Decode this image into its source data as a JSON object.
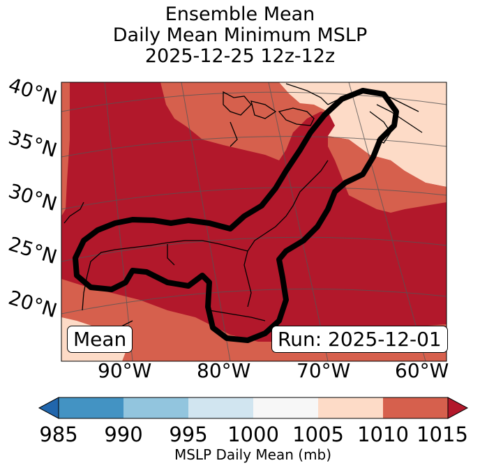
{
  "title": {
    "line1": "Ensemble Mean",
    "line2": "Daily Mean Minimum MSLP",
    "line3": "2025-12-25 12z-12z"
  },
  "map": {
    "lat_labels": [
      "40°N",
      "35°N",
      "30°N",
      "25°N",
      "20°N"
    ],
    "lon_labels": [
      "90°W",
      "80°W",
      "70°W",
      "60°W"
    ],
    "mean_badge": "Mean",
    "run_badge": "Run: 2025-12-01"
  },
  "colorbar": {
    "ticks": [
      "985",
      "990",
      "995",
      "1000",
      "1005",
      "1010",
      "1015"
    ],
    "label": "MSLP Daily Mean (mb)",
    "colors": [
      "#2166ac",
      "#4393c3",
      "#92c5de",
      "#d1e5f0",
      "#f7f7f7",
      "#fddbc7",
      "#d6604d",
      "#b2182b"
    ]
  },
  "colors": {
    "deep_red": "#b2182b",
    "mid_red": "#d6604d",
    "light_salmon": "#fddbc7",
    "contour": "#000000"
  }
}
